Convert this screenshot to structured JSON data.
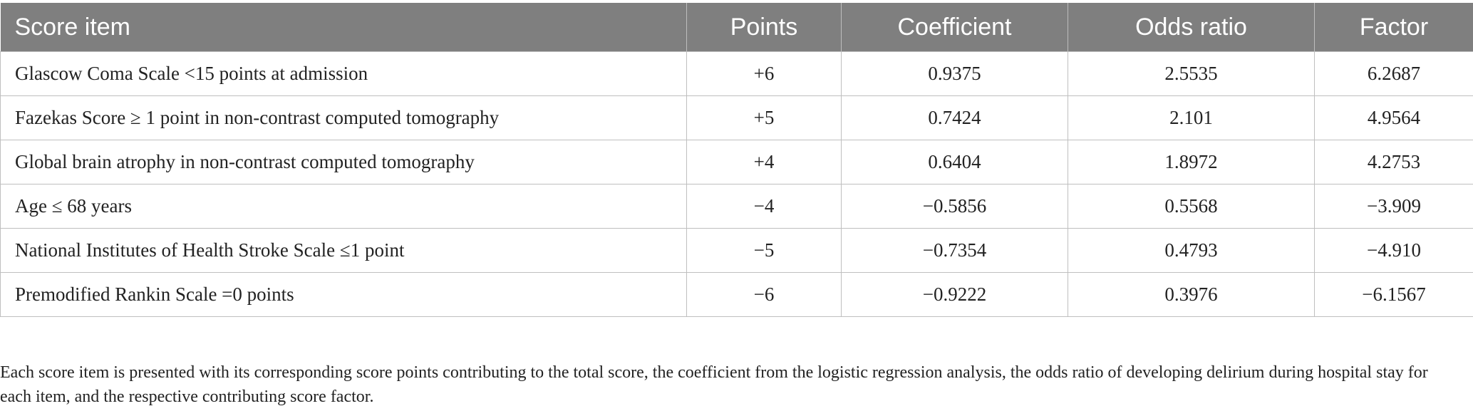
{
  "table": {
    "headers": [
      "Score item",
      "Points",
      "Coefficient",
      "Odds ratio",
      "Factor"
    ],
    "rows": [
      [
        "Glascow Coma Scale <15 points at admission",
        "+6",
        "0.9375",
        "2.5535",
        "6.2687"
      ],
      [
        "Fazekas Score ≥ 1 point in non-contrast computed tomography",
        "+5",
        "0.7424",
        "2.101",
        "4.9564"
      ],
      [
        "Global brain atrophy in non-contrast computed tomography",
        "+4",
        "0.6404",
        "1.8972",
        "4.2753"
      ],
      [
        "Age ≤ 68 years",
        "−4",
        "−0.5856",
        "0.5568",
        "−3.909"
      ],
      [
        "National Institutes of Health Stroke Scale ≤1 point",
        "−5",
        "−0.7354",
        "0.4793",
        "−4.910"
      ],
      [
        "Premodified Rankin Scale =0 points",
        "−6",
        "−0.9222",
        "0.3976",
        "−6.1567"
      ]
    ]
  },
  "caption": "Each score item is presented with its corresponding score points contributing to the total score, the coefficient from the logistic regression analysis, the odds ratio of developing delirium during hospital stay for each item, and the respective contributing score factor.",
  "colors": {
    "header_background": "#7f7f7f",
    "header_text": "#ffffff",
    "grid_lines": "#bfbfbf"
  }
}
